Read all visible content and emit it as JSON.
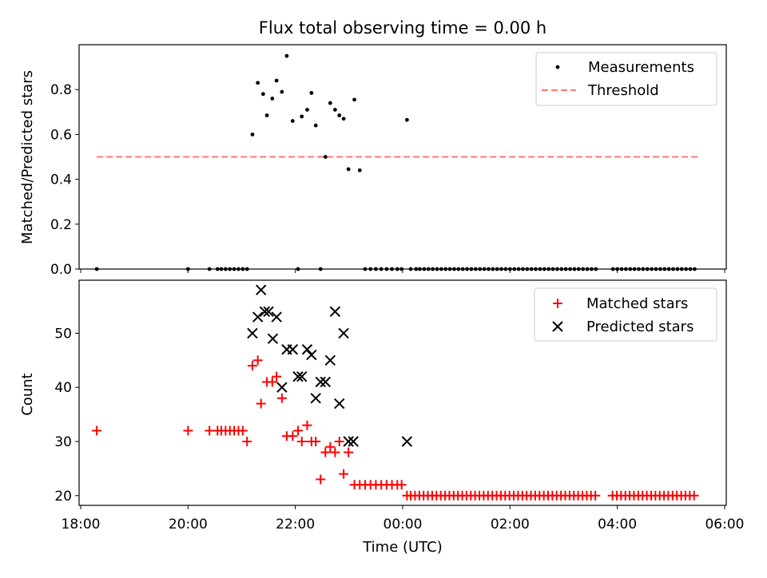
{
  "chart_data": [
    {
      "type": "scatter",
      "title": "Flux total observing time = 0.00 h",
      "xlabel": "",
      "ylabel": "Matched/Predicted stars",
      "xlim_hours": [
        17.97,
        30.03
      ],
      "ylim": [
        0,
        1.0
      ],
      "yticks": [
        0.0,
        0.2,
        0.4,
        0.6,
        0.8
      ],
      "ytick_labels": [
        "0.0",
        "0.2",
        "0.4",
        "0.6",
        "0.8"
      ],
      "legend": [
        "Measurements",
        "Threshold"
      ],
      "legend_position": "top-right",
      "threshold": {
        "y": 0.5,
        "x_start": 18.3,
        "x_end": 29.5,
        "color": "#ff7777"
      },
      "measurements": {
        "color": "#000000",
        "x": [
          18.3,
          20.0,
          20.4,
          20.55,
          20.62,
          20.7,
          20.78,
          20.86,
          20.94,
          21.02,
          21.1,
          21.2,
          21.3,
          21.4,
          21.47,
          21.57,
          21.65,
          21.75,
          21.84,
          21.95,
          22.05,
          22.12,
          22.22,
          22.3,
          22.38,
          22.47,
          22.56,
          22.65,
          22.74,
          22.82,
          22.9,
          22.99,
          23.1,
          23.2,
          23.3,
          23.4,
          23.5,
          23.6,
          23.7,
          23.8,
          23.9,
          23.98,
          24.08,
          24.15,
          24.25
        ],
        "y": [
          0.0,
          0.0,
          0.0,
          0.0,
          0.0,
          0.0,
          0.0,
          0.0,
          0.0,
          0.0,
          0.0,
          0.6,
          0.83,
          0.78,
          0.685,
          0.76,
          0.84,
          0.79,
          0.95,
          0.66,
          0.0,
          0.68,
          0.71,
          0.785,
          0.64,
          0.0,
          0.5,
          0.74,
          0.71,
          0.685,
          0.67,
          0.445,
          0.755,
          0.44,
          0.0,
          0.0,
          0.0,
          0.0,
          0.0,
          0.0,
          0.0,
          0.0,
          0.665,
          0.0,
          0.0
        ],
        "x_extra_zero_start": 24.32,
        "x_extra_zero_end": 29.5,
        "x_extra_zero_step": 0.08,
        "x_extra_gap": [
          27.6,
          27.85
        ]
      }
    },
    {
      "type": "scatter",
      "title": "",
      "xlabel": "Time (UTC)",
      "ylabel": "Count",
      "xlim_hours": [
        17.97,
        30.03
      ],
      "ylim": [
        18.2,
        59.8
      ],
      "yticks": [
        20,
        30,
        40,
        50
      ],
      "ytick_labels": [
        "20",
        "30",
        "40",
        "50"
      ],
      "xticks_hours": [
        18,
        20,
        22,
        24,
        26,
        28,
        30
      ],
      "xtick_labels": [
        "18:00",
        "20:00",
        "22:00",
        "00:00",
        "02:00",
        "04:00",
        "06:00"
      ],
      "legend": [
        "Matched stars",
        "Predicted stars"
      ],
      "legend_position": "top-right",
      "matched": {
        "color": "#ff0000",
        "x": [
          18.3,
          20.0,
          20.4,
          20.55,
          20.62,
          20.7,
          20.78,
          20.86,
          20.94,
          21.02,
          21.1,
          21.2,
          21.3,
          21.36,
          21.47,
          21.57,
          21.65,
          21.75,
          21.84,
          21.95,
          22.05,
          22.12,
          22.22,
          22.3,
          22.38,
          22.47,
          22.56,
          22.65,
          22.74,
          22.82,
          22.9,
          22.99,
          23.1,
          23.2,
          23.3,
          23.4,
          23.5,
          23.6,
          23.7,
          23.8,
          23.9,
          23.98,
          24.08
        ],
        "y": [
          32,
          32,
          32,
          32,
          32,
          32,
          32,
          32,
          32,
          32,
          30,
          44,
          45,
          37,
          41,
          41,
          42,
          38,
          31,
          31,
          32,
          30,
          33,
          30,
          30,
          23,
          28,
          29,
          28,
          30,
          24,
          28,
          22,
          22,
          22,
          22,
          22,
          22,
          22,
          22,
          22,
          22,
          20
        ],
        "x_extra_20_start": 24.15,
        "x_extra_20_end": 29.5,
        "x_extra_20_step": 0.08,
        "x_extra_gap": [
          27.6,
          27.85
        ]
      },
      "predicted": {
        "color": "#000000",
        "x": [
          21.2,
          21.3,
          21.36,
          21.43,
          21.5,
          21.58,
          21.65,
          21.75,
          21.84,
          21.95,
          22.05,
          22.12,
          22.22,
          22.3,
          22.38,
          22.47,
          22.56,
          22.65,
          22.74,
          22.82,
          22.9,
          22.99,
          23.08,
          24.08
        ],
        "y": [
          50,
          53,
          58,
          54,
          54,
          49,
          53,
          40,
          47,
          47,
          42,
          42,
          47,
          46,
          38,
          41,
          41,
          45,
          54,
          37,
          50,
          30,
          30,
          30
        ]
      }
    }
  ]
}
